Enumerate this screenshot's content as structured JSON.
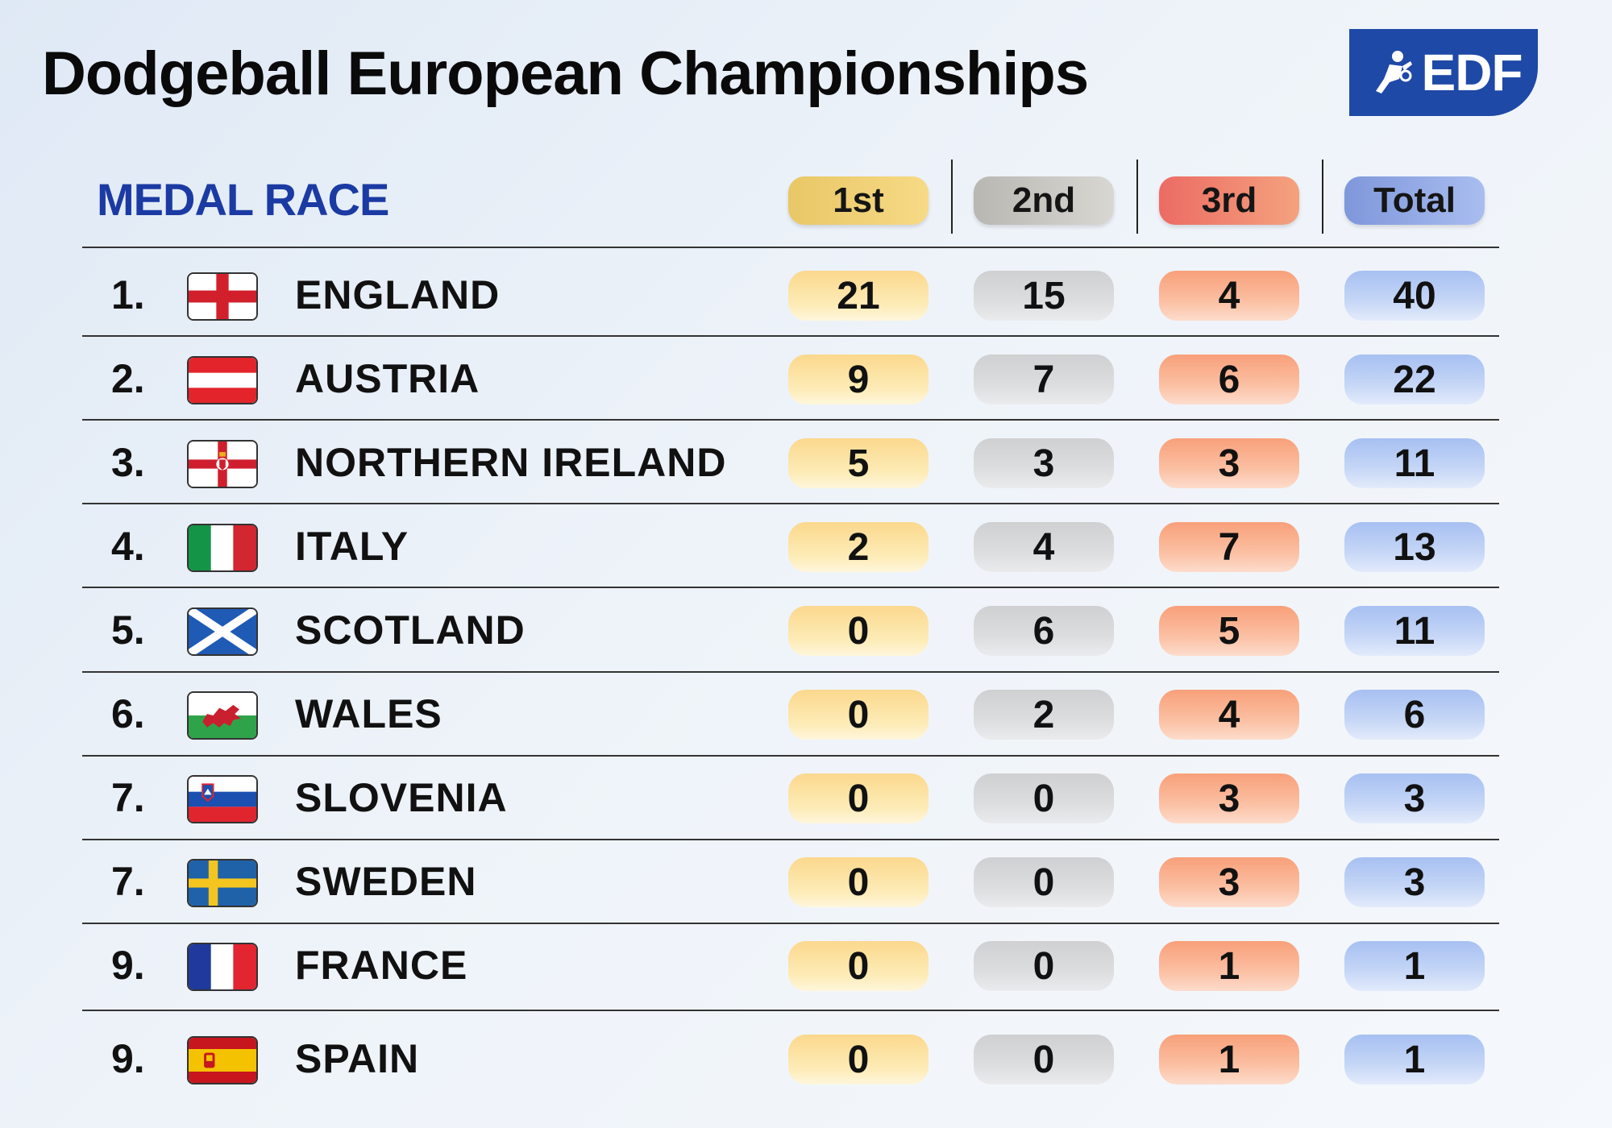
{
  "title": "Dodgeball European Championships",
  "logo": {
    "text": "EDF",
    "icon": "dodgeball-player-icon",
    "color": "#1f49a7"
  },
  "subtitle": "MEDAL RACE",
  "columns": {
    "gold": "1st",
    "silver": "2nd",
    "bronze": "3rd",
    "total": "Total"
  },
  "rows": [
    {
      "rank": "1.",
      "country": "ENGLAND",
      "flag": "england-flag",
      "gold": "21",
      "silver": "15",
      "bronze": "4",
      "total": "40"
    },
    {
      "rank": "2.",
      "country": "AUSTRIA",
      "flag": "austria-flag",
      "gold": "9",
      "silver": "7",
      "bronze": "6",
      "total": "22"
    },
    {
      "rank": "3.",
      "country": "NORTHERN IRELAND",
      "flag": "northern-ireland-flag",
      "gold": "5",
      "silver": "3",
      "bronze": "3",
      "total": "11"
    },
    {
      "rank": "4.",
      "country": "ITALY",
      "flag": "italy-flag",
      "gold": "2",
      "silver": "4",
      "bronze": "7",
      "total": "13"
    },
    {
      "rank": "5.",
      "country": "SCOTLAND",
      "flag": "scotland-flag",
      "gold": "0",
      "silver": "6",
      "bronze": "5",
      "total": "11"
    },
    {
      "rank": "6.",
      "country": "WALES",
      "flag": "wales-flag",
      "gold": "0",
      "silver": "2",
      "bronze": "4",
      "total": "6"
    },
    {
      "rank": "7.",
      "country": "SLOVENIA",
      "flag": "slovenia-flag",
      "gold": "0",
      "silver": "0",
      "bronze": "3",
      "total": "3"
    },
    {
      "rank": "7.",
      "country": "SWEDEN",
      "flag": "sweden-flag",
      "gold": "0",
      "silver": "0",
      "bronze": "3",
      "total": "3"
    },
    {
      "rank": "9.",
      "country": "FRANCE",
      "flag": "france-flag",
      "gold": "0",
      "silver": "0",
      "bronze": "1",
      "total": "1"
    },
    {
      "rank": "9.",
      "country": "SPAIN",
      "flag": "spain-flag",
      "gold": "0",
      "silver": "0",
      "bronze": "1",
      "total": "1"
    }
  ]
}
